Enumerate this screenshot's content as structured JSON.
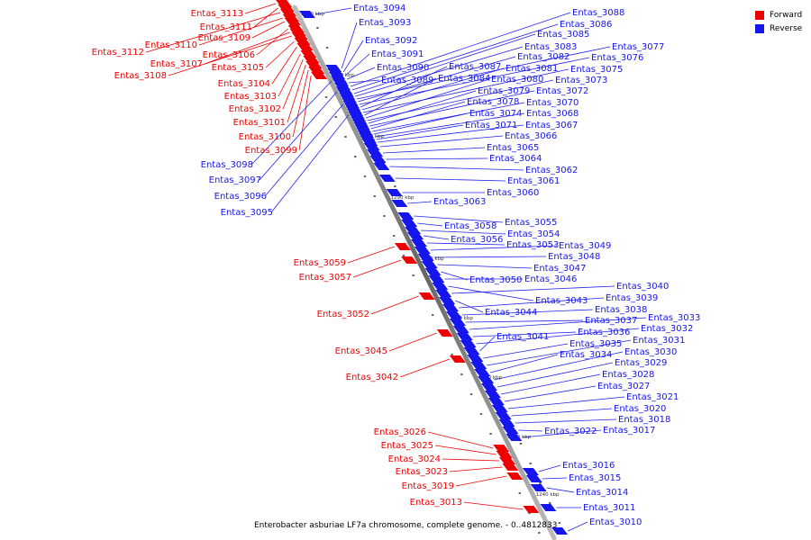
{
  "colors": {
    "forward": "#ee0000",
    "reverse": "#1515ee",
    "axis": "#888888",
    "leader_forward": "#ee0000",
    "leader_reverse": "#2020ee"
  },
  "legend": {
    "forward_label": "Forward",
    "reverse_label": "Reverse"
  },
  "caption": "Enterobacter asburiae LF7a chromosome, complete genome. - 0..4812833",
  "axis_ticks": [
    {
      "label": "1320 kbp",
      "bp": 1320
    },
    {
      "label": "1310 kbp",
      "bp": 1310
    },
    {
      "label": "1300 kbp",
      "bp": 1300
    },
    {
      "label": "1290 kbp",
      "bp": 1290
    },
    {
      "label": "1280 kbp",
      "bp": 1280
    },
    {
      "label": "1270 kbp",
      "bp": 1270
    },
    {
      "label": "1260 kbp",
      "bp": 1260
    },
    {
      "label": "1250 kbp",
      "bp": 1250
    },
    {
      "label": "1240 kbp",
      "bp": 1240
    }
  ],
  "forward_genes": [
    "Entas_3113",
    "Entas_3111",
    "Entas_3112",
    "Entas_3110",
    "Entas_3109",
    "Entas_3106",
    "Entas_3107",
    "Entas_3108",
    "Entas_3105",
    "Entas_3104",
    "Entas_3103",
    "Entas_3102",
    "Entas_3101",
    "Entas_3100",
    "Entas_3099",
    "Entas_3059",
    "Entas_3057",
    "Entas_3052",
    "Entas_3045",
    "Entas_3042",
    "Entas_3026",
    "Entas_3025",
    "Entas_3024",
    "Entas_3023",
    "Entas_3019",
    "Entas_3013"
  ],
  "reverse_genes": [
    "Entas_3098",
    "Entas_3097",
    "Entas_3096",
    "Entas_3095",
    "Entas_3094",
    "Entas_3093",
    "Entas_3092",
    "Entas_3091",
    "Entas_3090",
    "Entas_3089",
    "Entas_3088",
    "Entas_3086",
    "Entas_3085",
    "Entas_3083",
    "Entas_3077",
    "Entas_3082",
    "Entas_3076",
    "Entas_3087",
    "Entas_3081",
    "Entas_3075",
    "Entas_3084",
    "Entas_3080",
    "Entas_3073",
    "Entas_3079",
    "Entas_3072",
    "Entas_3078",
    "Entas_3070",
    "Entas_3074",
    "Entas_3068",
    "Entas_3071",
    "Entas_3067",
    "Entas_3066",
    "Entas_3065",
    "Entas_3064",
    "Entas_3062",
    "Entas_3061",
    "Entas_3060",
    "Entas_3063",
    "Entas_3055",
    "Entas_3058",
    "Entas_3054",
    "Entas_3056",
    "Entas_3053",
    "Entas_3049",
    "Entas_3048",
    "Entas_3047",
    "Entas_3050",
    "Entas_3046",
    "Entas_3043",
    "Entas_3040",
    "Entas_3044",
    "Entas_3039",
    "Entas_3038",
    "Entas_3037",
    "Entas_3033",
    "Entas_3036",
    "Entas_3032",
    "Entas_3041",
    "Entas_3035",
    "Entas_3031",
    "Entas_3034",
    "Entas_3030",
    "Entas_3029",
    "Entas_3028",
    "Entas_3027",
    "Entas_3021",
    "Entas_3020",
    "Entas_3018",
    "Entas_3022",
    "Entas_3017",
    "Entas_3016",
    "Entas_3015",
    "Entas_3014",
    "Entas_3011",
    "Entas_3010"
  ]
}
